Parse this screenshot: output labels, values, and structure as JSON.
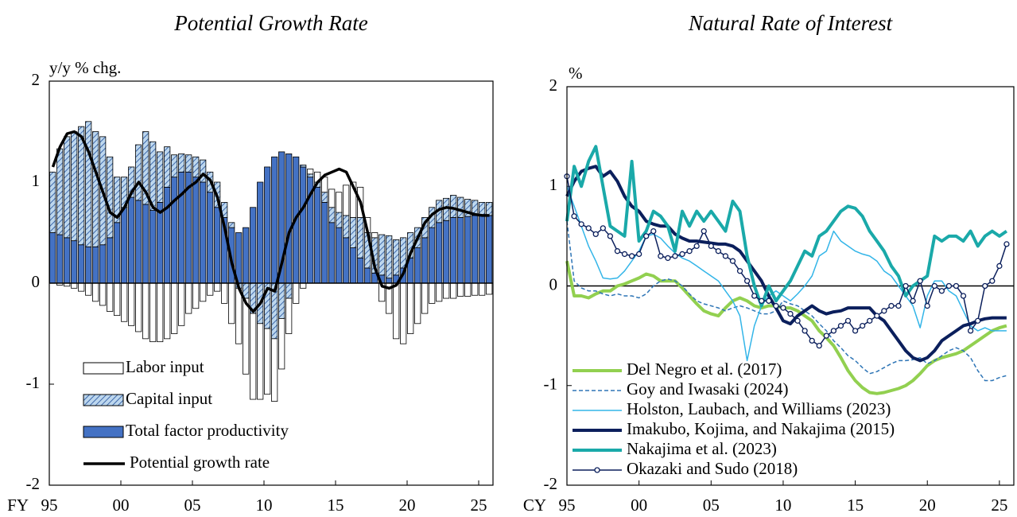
{
  "chart_data": [
    {
      "type": "bar",
      "title": "Potential Growth Rate",
      "y_unit": "y/y % chg.",
      "x_prefix": "FY",
      "x": [
        1995,
        1995.5,
        1996,
        1996.5,
        1997,
        1997.5,
        1998,
        1998.5,
        1999,
        1999.5,
        2000,
        2000.5,
        2001,
        2001.5,
        2002,
        2002.5,
        2003,
        2003.5,
        2004,
        2004.5,
        2005,
        2005.5,
        2006,
        2006.5,
        2007,
        2007.5,
        2008,
        2008.5,
        2009,
        2009.5,
        2010,
        2010.5,
        2011,
        2011.5,
        2012,
        2012.5,
        2013,
        2013.5,
        2014,
        2014.5,
        2015,
        2015.5,
        2016,
        2016.5,
        2017,
        2017.5,
        2018,
        2018.5,
        2019,
        2019.5,
        2020,
        2020.5,
        2021,
        2021.5,
        2022,
        2022.5,
        2023,
        2023.5,
        2024,
        2024.5,
        2025,
        2025.5
      ],
      "xlim": [
        1995,
        2026
      ],
      "xticks": [
        {
          "value": 1995,
          "label": "95"
        },
        {
          "value": 2000,
          "label": "00"
        },
        {
          "value": 2005,
          "label": "05"
        },
        {
          "value": 2010,
          "label": "10"
        },
        {
          "value": 2015,
          "label": "15"
        },
        {
          "value": 2020,
          "label": "20"
        },
        {
          "value": 2025,
          "label": "25"
        }
      ],
      "ylim": [
        -2,
        2
      ],
      "yticks": [
        -2,
        -1,
        0,
        1,
        2
      ],
      "legend": "lower left",
      "series": [
        {
          "name": "Labor input",
          "color": "#ffffff",
          "values": [
            0.0,
            -0.02,
            -0.03,
            -0.05,
            -0.08,
            -0.12,
            -0.18,
            -0.22,
            -0.28,
            -0.32,
            -0.38,
            -0.42,
            -0.48,
            -0.55,
            -0.58,
            -0.58,
            -0.55,
            -0.5,
            -0.42,
            -0.3,
            -0.25,
            -0.18,
            -0.12,
            -0.08,
            -0.2,
            -0.4,
            -0.55,
            -0.75,
            -0.85,
            -0.75,
            -0.65,
            -0.62,
            -0.5,
            -0.35,
            -0.2,
            -0.05,
            0.05,
            0.1,
            0.15,
            0.18,
            0.2,
            0.3,
            0.35,
            0.3,
            0.15,
            0.05,
            -0.18,
            -0.3,
            -0.55,
            -0.6,
            -0.5,
            -0.4,
            -0.3,
            -0.2,
            -0.18,
            -0.15,
            -0.15,
            -0.13,
            -0.13,
            -0.12,
            -0.12,
            -0.11
          ]
        },
        {
          "name": "Capital input",
          "color": "#bdd7ee",
          "hatch": true,
          "values": [
            0.6,
            0.85,
            1.0,
            1.08,
            1.17,
            1.24,
            1.14,
            1.07,
            0.8,
            0.45,
            0.3,
            0.3,
            0.55,
            0.72,
            0.68,
            0.5,
            0.4,
            0.22,
            0.18,
            0.17,
            0.2,
            0.22,
            0.2,
            0.25,
            0.15,
            0.05,
            -0.05,
            -0.15,
            -0.3,
            -0.4,
            -0.45,
            -0.55,
            -0.35,
            -0.15,
            0.0,
            0.02,
            0.03,
            0.05,
            0.1,
            0.15,
            0.15,
            0.22,
            0.3,
            0.4,
            0.35,
            0.35,
            0.4,
            0.42,
            0.35,
            0.3,
            0.25,
            0.2,
            0.2,
            0.2,
            0.22,
            0.22,
            0.22,
            0.2,
            0.17,
            0.15,
            0.13,
            0.13
          ]
        },
        {
          "name": "Total factor productivity",
          "color": "#4472c4",
          "values": [
            0.5,
            0.48,
            0.45,
            0.42,
            0.38,
            0.36,
            0.36,
            0.38,
            0.45,
            0.6,
            0.75,
            0.85,
            0.82,
            0.78,
            0.72,
            0.8,
            0.95,
            1.05,
            1.1,
            1.1,
            1.05,
            1.0,
            0.9,
            0.75,
            0.65,
            0.55,
            0.5,
            0.55,
            0.75,
            1.0,
            1.15,
            1.25,
            1.3,
            1.28,
            1.25,
            1.15,
            1.05,
            0.95,
            0.8,
            0.6,
            0.55,
            0.45,
            0.35,
            0.25,
            0.15,
            0.1,
            0.08,
            0.05,
            0.08,
            0.15,
            0.25,
            0.35,
            0.45,
            0.55,
            0.6,
            0.62,
            0.65,
            0.65,
            0.66,
            0.67,
            0.67,
            0.67
          ]
        },
        {
          "name": "Potential growth rate",
          "color": "#000000",
          "type": "line",
          "values": [
            1.15,
            1.35,
            1.48,
            1.5,
            1.45,
            1.3,
            1.1,
            0.9,
            0.7,
            0.65,
            0.75,
            0.9,
            1.0,
            0.9,
            0.75,
            0.7,
            0.75,
            0.82,
            0.88,
            0.95,
            1.0,
            1.08,
            1.02,
            0.85,
            0.55,
            0.2,
            -0.05,
            -0.2,
            -0.28,
            -0.2,
            -0.05,
            -0.08,
            0.2,
            0.5,
            0.65,
            0.75,
            0.88,
            1.0,
            1.07,
            1.1,
            1.13,
            1.1,
            0.95,
            0.8,
            0.5,
            0.15,
            -0.03,
            -0.05,
            -0.02,
            0.1,
            0.3,
            0.45,
            0.6,
            0.68,
            0.73,
            0.75,
            0.74,
            0.72,
            0.7,
            0.68,
            0.67,
            0.67
          ]
        }
      ]
    },
    {
      "type": "line",
      "title": "Natural Rate of Interest",
      "y_unit": "%",
      "x_prefix": "CY",
      "x": [
        1995,
        1995.5,
        1996,
        1996.5,
        1997,
        1997.5,
        1998,
        1998.5,
        1999,
        1999.5,
        2000,
        2000.5,
        2001,
        2001.5,
        2002,
        2002.5,
        2003,
        2003.5,
        2004,
        2004.5,
        2005,
        2005.5,
        2006,
        2006.5,
        2007,
        2007.5,
        2008,
        2008.5,
        2009,
        2009.5,
        2010,
        2010.5,
        2011,
        2011.5,
        2012,
        2012.5,
        2013,
        2013.5,
        2014,
        2014.5,
        2015,
        2015.5,
        2016,
        2016.5,
        2017,
        2017.5,
        2018,
        2018.5,
        2019,
        2019.5,
        2020,
        2020.5,
        2021,
        2021.5,
        2022,
        2022.5,
        2023,
        2023.5,
        2024,
        2024.5,
        2025,
        2025.5
      ],
      "xlim": [
        1995,
        2026
      ],
      "xticks": [
        {
          "value": 1995,
          "label": "95"
        },
        {
          "value": 2000,
          "label": "00"
        },
        {
          "value": 2005,
          "label": "05"
        },
        {
          "value": 2010,
          "label": "10"
        },
        {
          "value": 2015,
          "label": "15"
        },
        {
          "value": 2020,
          "label": "20"
        },
        {
          "value": 2025,
          "label": "25"
        }
      ],
      "ylim": [
        -2,
        2
      ],
      "yticks": [
        -2,
        -1,
        0,
        1,
        2
      ],
      "legend": "lower left",
      "series": [
        {
          "name": "Del Negro et al. (2017)",
          "color": "#92d050",
          "linewidth": 4,
          "values": [
            0.25,
            -0.1,
            -0.1,
            -0.12,
            -0.08,
            -0.05,
            -0.05,
            0.0,
            0.02,
            0.05,
            0.08,
            0.12,
            0.1,
            0.05,
            0.05,
            0.05,
            -0.02,
            -0.1,
            -0.18,
            -0.25,
            -0.28,
            -0.3,
            -0.22,
            -0.15,
            -0.12,
            -0.15,
            -0.2,
            -0.22,
            -0.2,
            -0.2,
            -0.22,
            -0.22,
            -0.25,
            -0.3,
            -0.35,
            -0.45,
            -0.52,
            -0.6,
            -0.72,
            -0.85,
            -0.95,
            -1.02,
            -1.07,
            -1.08,
            -1.07,
            -1.05,
            -1.03,
            -1.0,
            -0.95,
            -0.88,
            -0.8,
            -0.75,
            -0.72,
            -0.7,
            -0.68,
            -0.65,
            -0.6,
            -0.55,
            -0.5,
            -0.45,
            -0.42,
            -0.4
          ]
        },
        {
          "name": "Goy and Iwasaki (2024)",
          "color": "#2e75b6",
          "linewidth": 1.5,
          "dashed": true,
          "values": [
            0.65,
            0.05,
            -0.02,
            -0.05,
            -0.05,
            -0.08,
            -0.1,
            -0.08,
            -0.1,
            -0.1,
            -0.12,
            -0.08,
            0.0,
            0.05,
            0.07,
            0.05,
            0.0,
            -0.08,
            -0.15,
            -0.18,
            -0.2,
            -0.22,
            -0.25,
            -0.22,
            -0.2,
            -0.22,
            -0.25,
            -0.28,
            -0.28,
            -0.25,
            -0.15,
            -0.18,
            -0.2,
            -0.25,
            -0.3,
            -0.38,
            -0.45,
            -0.55,
            -0.62,
            -0.7,
            -0.75,
            -0.82,
            -0.88,
            -0.86,
            -0.82,
            -0.78,
            -0.75,
            -0.75,
            -0.74,
            -0.72,
            -0.78,
            -0.75,
            -0.7,
            -0.65,
            -0.62,
            -0.65,
            -0.72,
            -0.85,
            -0.95,
            -0.95,
            -0.92,
            -0.9
          ]
        },
        {
          "name": "Holston, Laubach, and Williams (2023)",
          "color": "#33b5e8",
          "linewidth": 1.5,
          "values": [
            1.0,
            0.8,
            0.6,
            0.4,
            0.25,
            0.08,
            0.07,
            0.08,
            0.15,
            0.25,
            0.35,
            0.5,
            0.52,
            0.48,
            0.4,
            0.33,
            0.28,
            0.25,
            0.2,
            0.15,
            0.1,
            0.05,
            -0.05,
            -0.15,
            -0.3,
            -0.75,
            -0.4,
            -0.2,
            -0.1,
            -0.05,
            -0.1,
            -0.15,
            -0.08,
            0.0,
            0.1,
            0.3,
            0.35,
            0.55,
            0.45,
            0.4,
            0.35,
            0.32,
            0.3,
            0.25,
            0.15,
            0.1,
            0.0,
            -0.1,
            -0.2,
            -0.42,
            -0.1,
            0.05,
            0.05,
            -0.05,
            -0.1,
            -0.25,
            -0.4,
            -0.45,
            -0.42,
            -0.45,
            -0.45,
            -0.45
          ]
        },
        {
          "name": "Imakubo, Kojima, and Nakajima (2015)",
          "color": "#0b1f5c",
          "linewidth": 4,
          "values": [
            0.9,
            1.05,
            1.15,
            1.18,
            1.2,
            1.1,
            1.15,
            1.05,
            0.9,
            0.8,
            0.75,
            0.65,
            0.62,
            0.6,
            0.6,
            0.52,
            0.48,
            0.45,
            0.45,
            0.44,
            0.43,
            0.42,
            0.42,
            0.4,
            0.35,
            0.25,
            0.15,
            0.05,
            -0.1,
            -0.22,
            -0.35,
            -0.38,
            -0.3,
            -0.25,
            -0.2,
            -0.25,
            -0.28,
            -0.26,
            -0.25,
            -0.22,
            -0.22,
            -0.22,
            -0.22,
            -0.3,
            -0.35,
            -0.45,
            -0.55,
            -0.65,
            -0.72,
            -0.75,
            -0.72,
            -0.65,
            -0.55,
            -0.5,
            -0.45,
            -0.4,
            -0.38,
            -0.35,
            -0.33,
            -0.32,
            -0.32,
            -0.32
          ]
        },
        {
          "name": "Nakajima et al. (2023)",
          "color": "#1aa9a9",
          "linewidth": 4,
          "values": [
            0.65,
            1.2,
            1.0,
            1.25,
            1.4,
            1.0,
            0.6,
            0.55,
            0.5,
            1.25,
            0.45,
            0.55,
            0.75,
            0.7,
            0.6,
            0.35,
            0.75,
            0.6,
            0.75,
            0.65,
            0.75,
            0.65,
            0.55,
            0.85,
            0.75,
            0.3,
            0.0,
            -0.2,
            0.0,
            -0.15,
            -0.05,
            0.05,
            0.2,
            0.35,
            0.3,
            0.5,
            0.55,
            0.65,
            0.75,
            0.8,
            0.78,
            0.7,
            0.55,
            0.45,
            0.35,
            0.2,
            0.1,
            -0.1,
            0.0,
            0.05,
            0.1,
            0.5,
            0.45,
            0.5,
            0.5,
            0.45,
            0.55,
            0.4,
            0.5,
            0.55,
            0.5,
            0.55
          ]
        },
        {
          "name": "Okazaki and Sudo (2018)",
          "color": "#0b1f5c",
          "linewidth": 1.5,
          "marker": true,
          "values": [
            1.1,
            0.7,
            0.62,
            0.58,
            0.52,
            0.58,
            0.5,
            0.35,
            0.32,
            0.3,
            0.32,
            0.5,
            0.55,
            0.3,
            0.28,
            0.3,
            0.32,
            0.35,
            0.4,
            0.55,
            0.4,
            0.35,
            0.3,
            0.25,
            0.15,
            0.05,
            -0.1,
            -0.15,
            -0.15,
            -0.2,
            -0.22,
            -0.28,
            -0.35,
            -0.45,
            -0.55,
            -0.6,
            -0.5,
            -0.45,
            -0.4,
            -0.35,
            -0.45,
            -0.4,
            -0.35,
            -0.3,
            -0.25,
            -0.2,
            -0.2,
            0.0,
            -0.15,
            0.05,
            -0.2,
            0.0,
            -0.05,
            0.0,
            0.0,
            -0.1,
            -0.45,
            -0.35,
            0.0,
            0.05,
            0.2,
            0.42
          ]
        }
      ]
    }
  ]
}
